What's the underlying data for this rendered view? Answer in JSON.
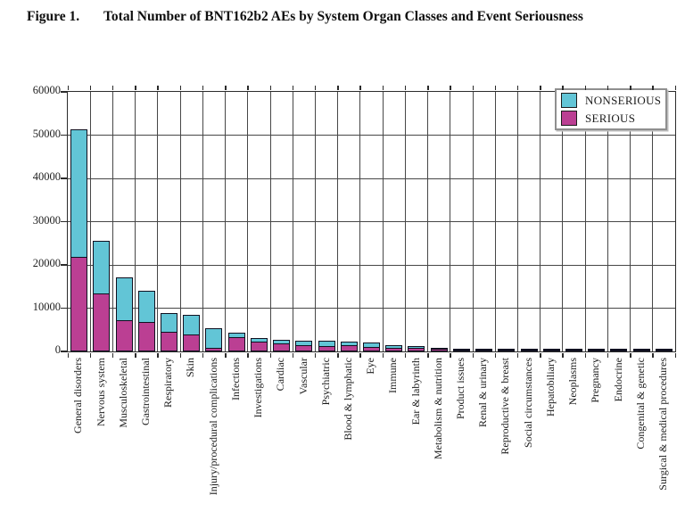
{
  "title": {
    "label": "Figure 1.",
    "text": "Total Number of BNT162b2 AEs by System Organ Classes and Event Seriousness"
  },
  "legend": {
    "items": [
      {
        "label": "NONSERIOUS",
        "color": "#62c5d6"
      },
      {
        "label": "SERIOUS",
        "color": "#bb3f93"
      }
    ]
  },
  "colors": {
    "nonserious": "#62c5d6",
    "serious": "#bb3f93",
    "grid": "#474747",
    "axis": "#2b2b2b",
    "segment_outline": "#101020"
  },
  "chart_data": {
    "type": "bar",
    "stacked": true,
    "title": "Total Number of BNT162b2 AEs by System Organ Classes and Event Seriousness",
    "xlabel": "",
    "ylabel": "",
    "ylim": [
      0,
      60000
    ],
    "yticks": [
      0,
      10000,
      20000,
      30000,
      40000,
      50000,
      60000
    ],
    "grid": true,
    "legend_position": "top-right",
    "categories": [
      "General disorders",
      "Nervous system",
      "Musculoskeletal",
      "Gastrointestinal",
      "Respiratory",
      "Skin",
      "Injury/procedural complications",
      "Infections",
      "Investigations",
      "Cardiac",
      "Vascular",
      "Psychiatric",
      "Blood & lymphatic",
      "Eye",
      "Immune",
      "Ear & labyrinth",
      "Metabolism & nutrition",
      "Product issues",
      "Renal & urinary",
      "Reproductive & breast",
      "Social circumstances",
      "Hepatobiliary",
      "Neoplasms",
      "Pregnancy",
      "Endocrine",
      "Congenital & genetic",
      "Surgical & medical procedures"
    ],
    "series": [
      {
        "name": "SERIOUS",
        "color": "#bb3f93",
        "values": [
          21800,
          13400,
          7300,
          6800,
          4600,
          3900,
          900,
          3200,
          2300,
          1900,
          1500,
          1300,
          1400,
          1000,
          900,
          900,
          600,
          250,
          250,
          200,
          150,
          180,
          180,
          180,
          120,
          100,
          80
        ]
      },
      {
        "name": "NONSERIOUS",
        "color": "#62c5d6",
        "values": [
          29500,
          12100,
          9900,
          7200,
          4200,
          4500,
          4500,
          1100,
          900,
          800,
          1000,
          1100,
          900,
          1100,
          600,
          400,
          300,
          200,
          150,
          150,
          150,
          70,
          70,
          120,
          80,
          80,
          70
        ]
      }
    ],
    "totals": [
      51300,
      25500,
      17200,
      14000,
      8800,
      8400,
      5400,
      4300,
      3200,
      2700,
      2500,
      2400,
      2300,
      2100,
      1500,
      1300,
      900,
      450,
      400,
      350,
      300,
      250,
      250,
      300,
      200,
      180,
      150
    ]
  }
}
